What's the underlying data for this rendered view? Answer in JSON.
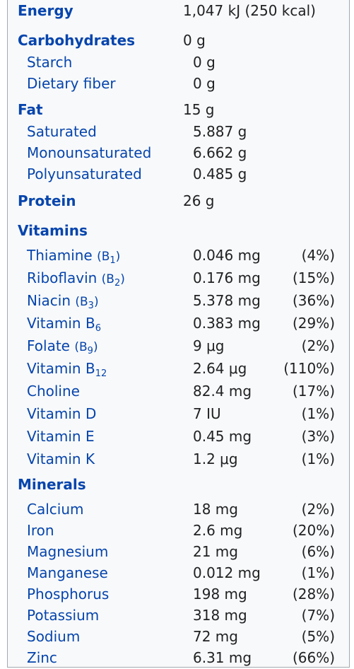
{
  "energy": {
    "label": "Energy",
    "value": "1,047 kJ (250 kcal)"
  },
  "carbs": {
    "label": "Carbohydrates",
    "value": "0 g",
    "items": [
      {
        "label": "Starch",
        "value": "0 g"
      },
      {
        "label": "Dietary fiber",
        "value": "0 g"
      }
    ]
  },
  "fat": {
    "label": "Fat",
    "value": "15 g",
    "items": [
      {
        "label": "Saturated",
        "value": "5.887 g"
      },
      {
        "label": "Monounsaturated",
        "value": "6.662 g"
      },
      {
        "label": "Polyunsaturated",
        "value": "0.485 g"
      }
    ]
  },
  "protein": {
    "label": "Protein",
    "value": "26 g"
  },
  "vitamins": {
    "label": "Vitamins",
    "items": [
      {
        "label": "Thiamine",
        "sub_pre": "(B",
        "sub": "1",
        "sub_post": ")",
        "value": "0.046 mg",
        "pct": "(4%)"
      },
      {
        "label": "Riboflavin",
        "sub_pre": "(B",
        "sub": "2",
        "sub_post": ")",
        "value": "0.176 mg",
        "pct": "(15%)"
      },
      {
        "label": "Niacin",
        "sub_pre": "(B",
        "sub": "3",
        "sub_post": ")",
        "value": "5.378 mg",
        "pct": "(36%)"
      },
      {
        "label": "Vitamin B",
        "sub": "6",
        "value": "0.383 mg",
        "pct": "(29%)"
      },
      {
        "label": "Folate",
        "sub_pre": "(B",
        "sub": "9",
        "sub_post": ")",
        "value": "9 μg",
        "pct": "(2%)"
      },
      {
        "label": "Vitamin B",
        "sub": "12",
        "value": "2.64 μg",
        "pct": "(110%)"
      },
      {
        "label": "Choline",
        "value": "82.4 mg",
        "pct": "(17%)"
      },
      {
        "label": "Vitamin D",
        "value": "7 IU",
        "pct": "(1%)"
      },
      {
        "label": "Vitamin E",
        "value": "0.45 mg",
        "pct": "(3%)"
      },
      {
        "label": "Vitamin K",
        "value": "1.2 μg",
        "pct": "(1%)"
      }
    ]
  },
  "minerals": {
    "label": "Minerals",
    "items": [
      {
        "label": "Calcium",
        "value": "18 mg",
        "pct": "(2%)"
      },
      {
        "label": "Iron",
        "value": "2.6 mg",
        "pct": "(20%)"
      },
      {
        "label": "Magnesium",
        "value": "21 mg",
        "pct": "(6%)"
      },
      {
        "label": "Manganese",
        "value": "0.012 mg",
        "pct": "(1%)"
      },
      {
        "label": "Phosphorus",
        "value": "198 mg",
        "pct": "(28%)"
      },
      {
        "label": "Potassium",
        "value": "318 mg",
        "pct": "(7%)"
      },
      {
        "label": "Sodium",
        "value": "72 mg",
        "pct": "(5%)"
      },
      {
        "label": "Zinc",
        "value": "6.31 mg",
        "pct": "(66%)"
      }
    ]
  },
  "colors": {
    "link": "#0645ad",
    "text": "#202122",
    "panel_bg": "#f8f9fa",
    "border": "#a2a9b1"
  }
}
